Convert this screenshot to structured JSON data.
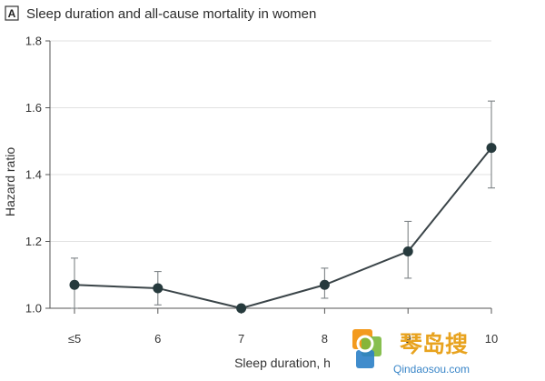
{
  "chart_data": {
    "type": "line",
    "panel_label": "A",
    "title": "Sleep duration and all-cause mortality in women",
    "xlabel": "Sleep duration, h",
    "ylabel": "Hazard ratio",
    "categories": [
      "≤5",
      "6",
      "7",
      "8",
      "9",
      "10"
    ],
    "series": [
      {
        "values": [
          1.07,
          1.06,
          1.0,
          1.07,
          1.17,
          1.48
        ],
        "ci_lower": [
          1.0,
          1.01,
          1.0,
          1.03,
          1.09,
          1.36
        ],
        "ci_upper": [
          1.15,
          1.11,
          1.0,
          1.12,
          1.26,
          1.62
        ]
      }
    ],
    "ylim": [
      1.0,
      1.8
    ],
    "yticks": [
      "1.0",
      "1.2",
      "1.4",
      "1.6",
      "1.8"
    ],
    "grid": true,
    "colors": {
      "line": "#3a4448",
      "point": "#263a3d",
      "error_bar": "#7d8386"
    }
  },
  "watermark": {
    "title": "琴岛搜",
    "url": "Qindaosou.com",
    "colors": {
      "title": "#e8a31f",
      "logo_orange": "#f39a1e",
      "logo_green": "#7ab83c",
      "logo_blue": "#2b7fc6",
      "url": "#3a86c8"
    }
  }
}
